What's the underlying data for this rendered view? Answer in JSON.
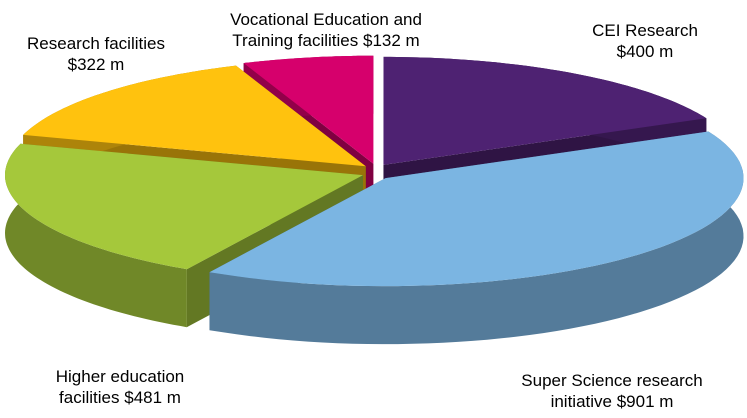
{
  "chart_data": {
    "type": "pie",
    "categories": [
      "CEI Research",
      "Super Science research initiative",
      "Higher education facilities",
      "Research facilities",
      "Vocational Education and Training facilities"
    ],
    "values": [
      400,
      901,
      481,
      322,
      132
    ],
    "value_labels": [
      "$400 m",
      "$901 m",
      "$481 m",
      "$322 m",
      "$132 m"
    ],
    "colors": [
      "#4e2272",
      "#7bb5e2",
      "#a5c83b",
      "#ffc20e",
      "#d6006c"
    ]
  }
}
